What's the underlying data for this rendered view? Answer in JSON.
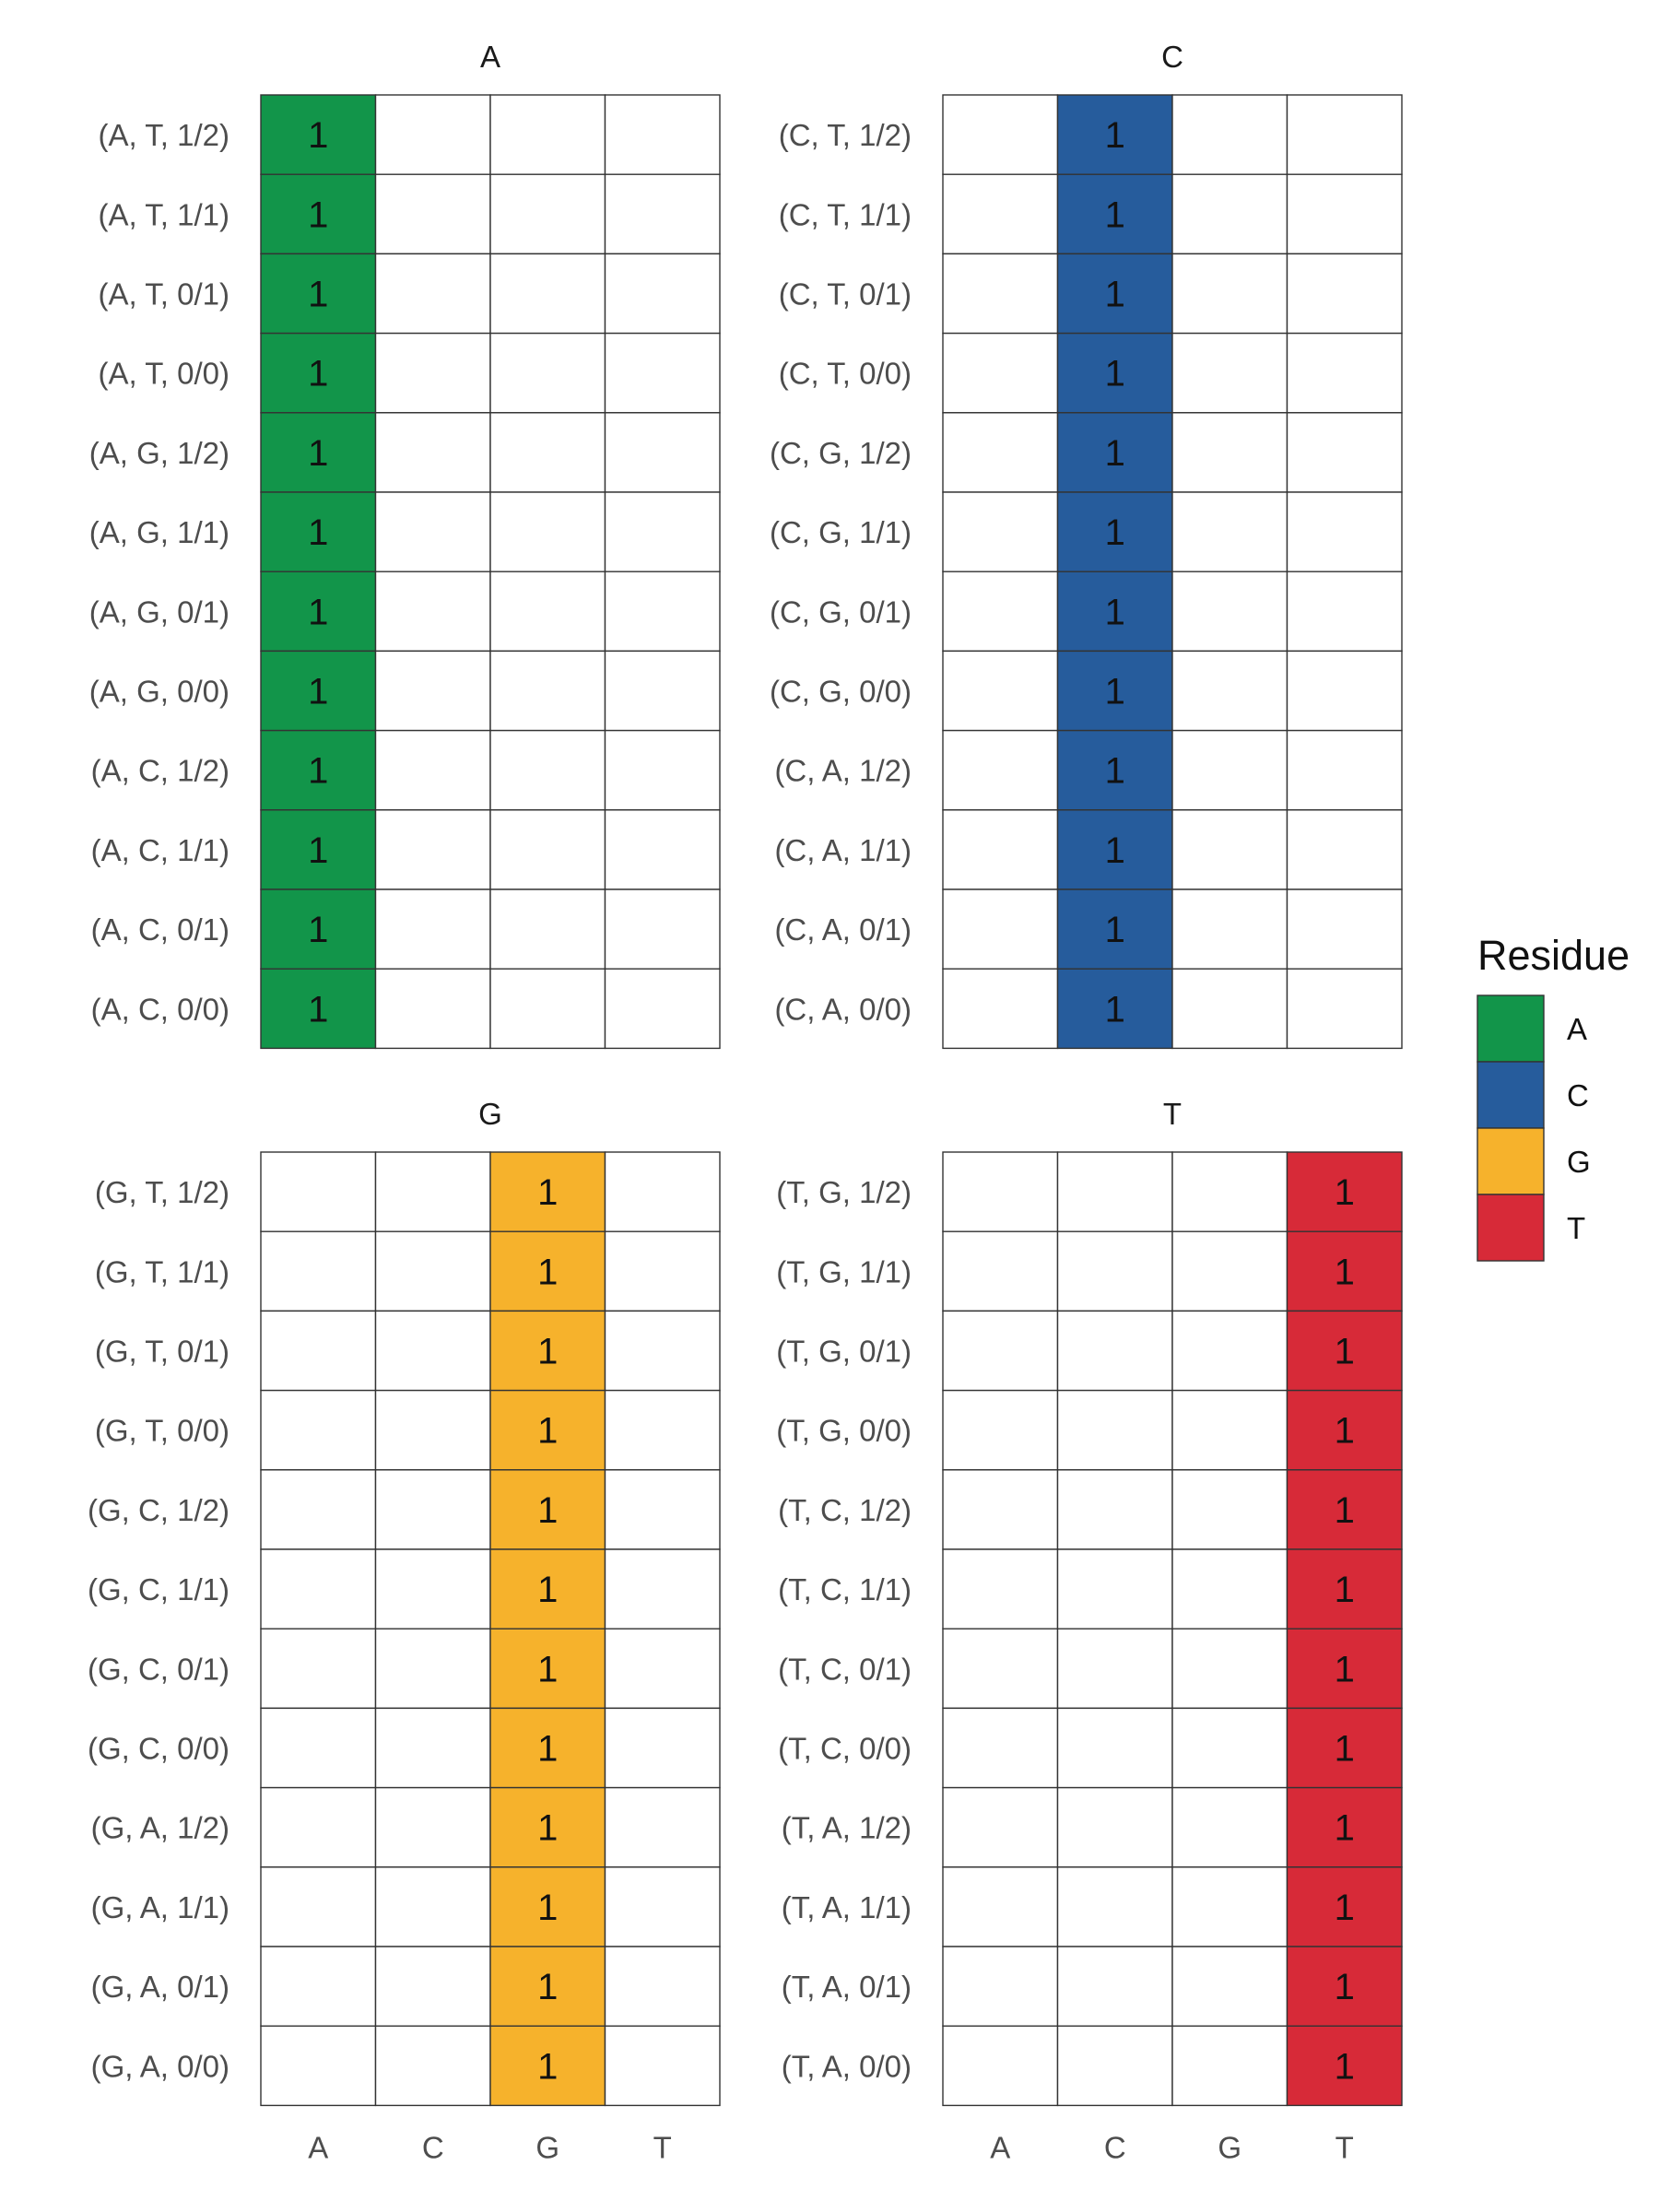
{
  "chart_data": {
    "type": "heatmap",
    "columns": [
      "A",
      "C",
      "G",
      "T"
    ],
    "cell_label": "1",
    "panels": [
      {
        "title": "A",
        "fill_column": "A",
        "rows": [
          "(A, T, 1/2)",
          "(A, T, 1/1)",
          "(A, T, 0/1)",
          "(A, T, 0/0)",
          "(A, G, 1/2)",
          "(A, G, 1/1)",
          "(A, G, 0/1)",
          "(A, G, 0/0)",
          "(A, C, 1/2)",
          "(A, C, 1/1)",
          "(A, C, 0/1)",
          "(A, C, 0/0)"
        ],
        "values": [
          [
            1,
            0,
            0,
            0
          ],
          [
            1,
            0,
            0,
            0
          ],
          [
            1,
            0,
            0,
            0
          ],
          [
            1,
            0,
            0,
            0
          ],
          [
            1,
            0,
            0,
            0
          ],
          [
            1,
            0,
            0,
            0
          ],
          [
            1,
            0,
            0,
            0
          ],
          [
            1,
            0,
            0,
            0
          ],
          [
            1,
            0,
            0,
            0
          ],
          [
            1,
            0,
            0,
            0
          ],
          [
            1,
            0,
            0,
            0
          ],
          [
            1,
            0,
            0,
            0
          ]
        ]
      },
      {
        "title": "C",
        "fill_column": "C",
        "rows": [
          "(C, T, 1/2)",
          "(C, T, 1/1)",
          "(C, T, 0/1)",
          "(C, T, 0/0)",
          "(C, G, 1/2)",
          "(C, G, 1/1)",
          "(C, G, 0/1)",
          "(C, G, 0/0)",
          "(C, A, 1/2)",
          "(C, A, 1/1)",
          "(C, A, 0/1)",
          "(C, A, 0/0)"
        ],
        "values": [
          [
            0,
            1,
            0,
            0
          ],
          [
            0,
            1,
            0,
            0
          ],
          [
            0,
            1,
            0,
            0
          ],
          [
            0,
            1,
            0,
            0
          ],
          [
            0,
            1,
            0,
            0
          ],
          [
            0,
            1,
            0,
            0
          ],
          [
            0,
            1,
            0,
            0
          ],
          [
            0,
            1,
            0,
            0
          ],
          [
            0,
            1,
            0,
            0
          ],
          [
            0,
            1,
            0,
            0
          ],
          [
            0,
            1,
            0,
            0
          ],
          [
            0,
            1,
            0,
            0
          ]
        ]
      },
      {
        "title": "G",
        "fill_column": "G",
        "rows": [
          "(G, T, 1/2)",
          "(G, T, 1/1)",
          "(G, T, 0/1)",
          "(G, T, 0/0)",
          "(G, C, 1/2)",
          "(G, C, 1/1)",
          "(G, C, 0/1)",
          "(G, C, 0/0)",
          "(G, A, 1/2)",
          "(G, A, 1/1)",
          "(G, A, 0/1)",
          "(G, A, 0/0)"
        ],
        "values": [
          [
            0,
            0,
            1,
            0
          ],
          [
            0,
            0,
            1,
            0
          ],
          [
            0,
            0,
            1,
            0
          ],
          [
            0,
            0,
            1,
            0
          ],
          [
            0,
            0,
            1,
            0
          ],
          [
            0,
            0,
            1,
            0
          ],
          [
            0,
            0,
            1,
            0
          ],
          [
            0,
            0,
            1,
            0
          ],
          [
            0,
            0,
            1,
            0
          ],
          [
            0,
            0,
            1,
            0
          ],
          [
            0,
            0,
            1,
            0
          ],
          [
            0,
            0,
            1,
            0
          ]
        ]
      },
      {
        "title": "T",
        "fill_column": "T",
        "rows": [
          "(T, G, 1/2)",
          "(T, G, 1/1)",
          "(T, G, 0/1)",
          "(T, G, 0/0)",
          "(T, C, 1/2)",
          "(T, C, 1/1)",
          "(T, C, 0/1)",
          "(T, C, 0/0)",
          "(T, A, 1/2)",
          "(T, A, 1/1)",
          "(T, A, 0/1)",
          "(T, A, 0/0)"
        ],
        "values": [
          [
            0,
            0,
            0,
            1
          ],
          [
            0,
            0,
            0,
            1
          ],
          [
            0,
            0,
            0,
            1
          ],
          [
            0,
            0,
            0,
            1
          ],
          [
            0,
            0,
            0,
            1
          ],
          [
            0,
            0,
            0,
            1
          ],
          [
            0,
            0,
            0,
            1
          ],
          [
            0,
            0,
            0,
            1
          ],
          [
            0,
            0,
            0,
            1
          ],
          [
            0,
            0,
            0,
            1
          ],
          [
            0,
            0,
            0,
            1
          ],
          [
            0,
            0,
            0,
            1
          ]
        ]
      }
    ],
    "legend": {
      "title": "Residue",
      "placement": "right",
      "items": [
        {
          "label": "A",
          "color": "#12954a"
        },
        {
          "label": "C",
          "color": "#265c9c"
        },
        {
          "label": "G",
          "color": "#f6b22c"
        },
        {
          "label": "T",
          "color": "#d72a38"
        }
      ]
    }
  }
}
